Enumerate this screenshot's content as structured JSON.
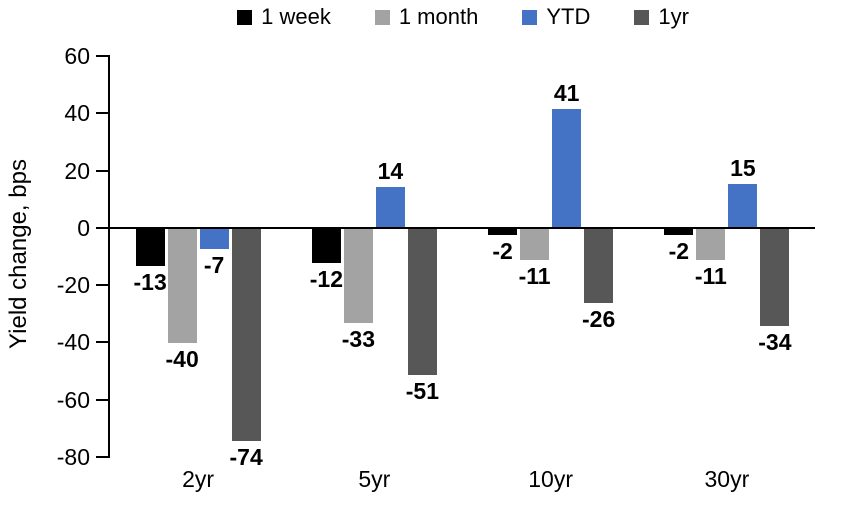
{
  "chart_data": {
    "type": "bar",
    "title": "",
    "ylabel": "Yield change, bps",
    "xlabel": "",
    "ylim": [
      -80,
      60
    ],
    "y_tick_step": 20,
    "y_tick_labels": [
      "60",
      "40",
      "20",
      "0",
      "-20",
      "-40",
      "-60",
      "-80"
    ],
    "grid": false,
    "legend_position": "top",
    "categories": [
      "2yr",
      "5yr",
      "10yr",
      "30yr"
    ],
    "series": [
      {
        "name": "1 week",
        "color": "#000000",
        "values": [
          -13,
          -12,
          -2,
          -2
        ]
      },
      {
        "name": "1 month",
        "color": "#a3a3a3",
        "values": [
          -40,
          -33,
          -11,
          -11
        ]
      },
      {
        "name": "YTD",
        "color": "#4472c4",
        "values": [
          -7,
          14,
          41,
          15
        ]
      },
      {
        "name": "1yr",
        "color": "#575757",
        "values": [
          -74,
          -51,
          -26,
          -34
        ]
      }
    ],
    "axis_color": "#000000"
  }
}
